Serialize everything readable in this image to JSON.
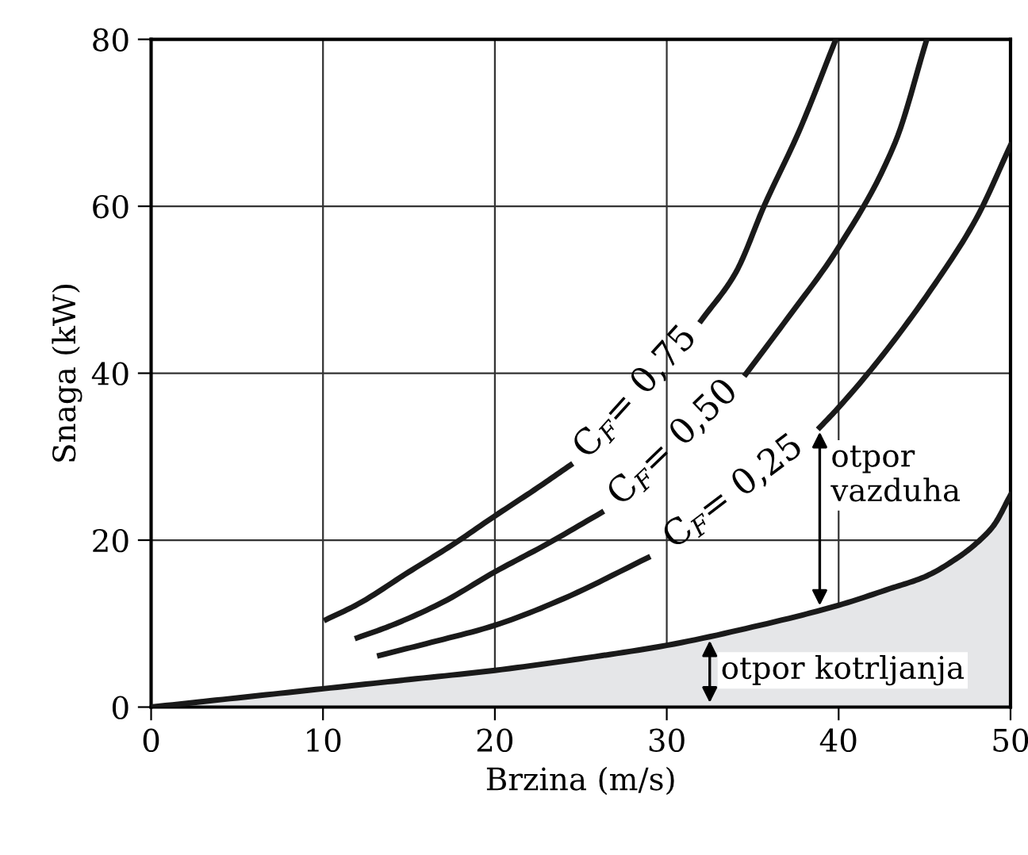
{
  "chart_data": {
    "type": "line",
    "xlabel": "Brzina (m/s)",
    "ylabel": "Snaga (kW)",
    "xlim": [
      0,
      50
    ],
    "ylim": [
      0,
      80
    ],
    "xticks": [
      0,
      10,
      20,
      30,
      40,
      50
    ],
    "yticks": [
      0,
      20,
      40,
      60,
      80
    ],
    "grid": true,
    "marker": "none",
    "line_style": "solid",
    "series": [
      {
        "type": "area",
        "color": "#e5e6e8",
        "x": [
          0,
          5,
          10,
          15,
          20,
          25,
          30,
          35,
          40,
          43,
          45,
          47,
          48,
          49,
          50
        ],
        "values": [
          0,
          1.1,
          2.2,
          3.3,
          4.4,
          5.8,
          7.4,
          9.6,
          12.2,
          14.2,
          15.6,
          18,
          19.6,
          21.7,
          25.4
        ]
      },
      {
        "name": "C$_{F}$= 0,75",
        "color": "#1a1a1a",
        "x": [
          10.2,
          12,
          15,
          17.5,
          20,
          22.5,
          24.4,
          28.2,
          32.0,
          34,
          35.7,
          37.7,
          39.8
        ],
        "values": [
          10.5,
          12.3,
          16.2,
          19.4,
          22.9,
          26.3,
          29.0,
          null,
          46.3,
          52,
          60.2,
          69.0,
          79.8
        ]
      },
      {
        "name": "C$_{F}$= 0,50",
        "color": "#1a1a1a",
        "x": [
          12,
          14,
          17,
          20,
          23,
          26.2,
          30.4,
          34.6,
          37,
          40,
          43.3,
          45.1
        ],
        "values": [
          8.3,
          9.8,
          12.6,
          16.2,
          19.5,
          23.3,
          null,
          39.9,
          46.5,
          55.1,
          67.7,
          79.8
        ]
      },
      {
        "name": "C$_{F}$= 0,25",
        "color": "#1a1a1a",
        "x": [
          13.3,
          16,
          20,
          24,
          28.9,
          33.9,
          38.9,
          40,
          42.5,
          45.6,
          48,
          50
        ],
        "values": [
          6.2,
          7.6,
          9.8,
          13.0,
          17.9,
          null,
          33.5,
          35.9,
          42,
          50.7,
          58.5,
          67.3
        ]
      }
    ],
    "annotations": [
      {
        "text": "otpor\nvazduha",
        "x": 38.9,
        "y": 33.5
      },
      {
        "text": "otpor kotrljanja",
        "x": 32.5,
        "y": 8.5
      }
    ]
  }
}
